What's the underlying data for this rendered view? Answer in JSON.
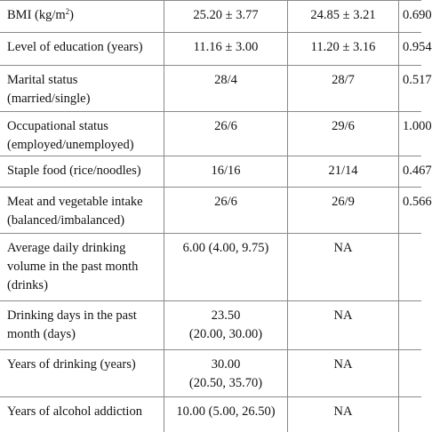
{
  "rows": [
    {
      "label": "",
      "label2": "",
      "g1": "",
      "g1b": "",
      "g2": "",
      "p": ""
    },
    {
      "label": "BMI (kg/m",
      "sup": "2",
      "label_end": ")",
      "g1": "25.20 ± 3.77",
      "g2": "24.85 ± 3.21",
      "p": "0.690"
    },
    {
      "label": "Level of education (years)",
      "g1": "11.16 ± 3.00",
      "g2": "11.20 ± 3.16",
      "p": "0.954"
    },
    {
      "label": "Marital status",
      "label2": "(married/single)",
      "g1": "28/4",
      "g2": "28/7",
      "p": "0.517"
    },
    {
      "label": "Occupational status",
      "label2": "(employed/unemployed)",
      "g1": "26/6",
      "g2": "29/6",
      "p": "1.000"
    },
    {
      "label": "Staple food (rice/noodles)",
      "g1": "16/16",
      "g2": "21/14",
      "p": "0.467"
    },
    {
      "label": "Meat and vegetable intake",
      "label2": "(balanced/imbalanced)",
      "g1": "26/6",
      "g2": "26/9",
      "p": "0.566"
    },
    {
      "label": "Average daily drinking",
      "label2": "volume in the past month",
      "label3": "(drinks)",
      "g1": "6.00 (4.00, 9.75)",
      "g2": "NA",
      "p": ""
    },
    {
      "label": "Drinking days in the past",
      "label2": "month (days)",
      "g1": "23.50",
      "g1b": "(20.00, 30.00)",
      "g2": "NA",
      "p": ""
    },
    {
      "label": "Years of drinking (years)",
      "g1": "30.00",
      "g1b": "(20.50, 35.70)",
      "g2": "NA",
      "p": ""
    },
    {
      "label": "Years of alcohol addiction",
      "g1": "10.00 (5.00, 26.50)",
      "g2": "NA",
      "p": ""
    }
  ]
}
